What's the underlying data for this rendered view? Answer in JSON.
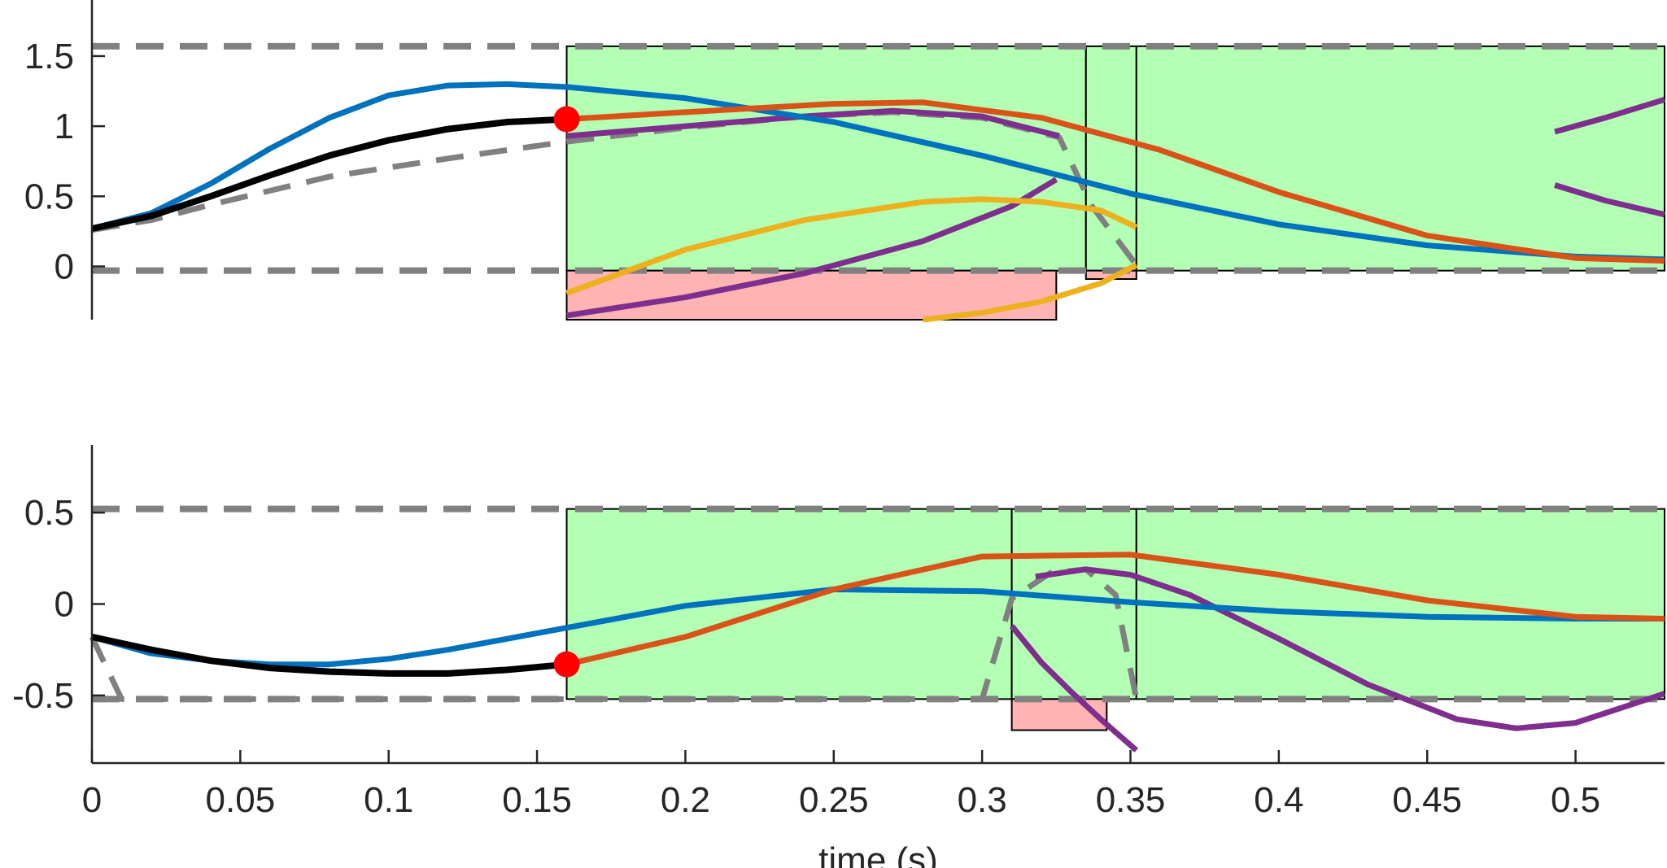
{
  "chart_data": [
    {
      "type": "line",
      "panel": "top",
      "xlim": [
        0,
        0.53
      ],
      "ylim": [
        -0.38,
        1.9
      ],
      "yticks": [
        0,
        0.5,
        1,
        1.5
      ],
      "ytick_labels": [
        "0",
        "0.5",
        "1",
        "1.5"
      ],
      "xtick_labels_shown": false,
      "colors": {
        "black": "#000000",
        "blue": "#0072BD",
        "orange": "#D95319",
        "purple": "#7E2F8E",
        "yellow": "#EDB120",
        "gray": "#808080",
        "green": "#B3FFB3",
        "pink": "#FFB3B3",
        "red": "#FF0000"
      },
      "bounds": {
        "upper": 1.57,
        "lower": -0.03
      },
      "safe_regions": [
        {
          "x": [
            0.16,
            0.335
          ],
          "y": [
            -0.03,
            1.57
          ]
        },
        {
          "x": [
            0.335,
            0.352
          ],
          "y": [
            -0.03,
            1.57
          ]
        },
        {
          "x": [
            0.352,
            0.53
          ],
          "y": [
            -0.03,
            1.57
          ]
        }
      ],
      "unsafe_regions": [
        {
          "x": [
            0.16,
            0.325
          ],
          "y": [
            -0.38,
            -0.03
          ]
        },
        {
          "x": [
            0.335,
            0.352
          ],
          "y": [
            -0.09,
            -0.03
          ]
        }
      ],
      "marker": {
        "x": 0.16,
        "y": 1.05
      },
      "series": [
        {
          "key": "black",
          "style": "solid",
          "x": [
            0,
            0.02,
            0.04,
            0.06,
            0.08,
            0.1,
            0.12,
            0.14,
            0.16
          ],
          "y": [
            0.27,
            0.36,
            0.5,
            0.65,
            0.79,
            0.9,
            0.98,
            1.03,
            1.05
          ]
        },
        {
          "key": "blue",
          "style": "solid",
          "x": [
            0,
            0.02,
            0.04,
            0.06,
            0.08,
            0.1,
            0.12,
            0.14,
            0.16,
            0.2,
            0.25,
            0.3,
            0.35,
            0.4,
            0.45,
            0.5,
            0.53
          ],
          "y": [
            0.27,
            0.38,
            0.59,
            0.84,
            1.06,
            1.22,
            1.29,
            1.3,
            1.28,
            1.2,
            1.03,
            0.79,
            0.52,
            0.3,
            0.15,
            0.07,
            0.05
          ]
        },
        {
          "key": "orange",
          "style": "solid",
          "x": [
            0.16,
            0.2,
            0.25,
            0.28,
            0.32,
            0.36,
            0.4,
            0.45,
            0.5,
            0.53
          ],
          "y": [
            1.05,
            1.1,
            1.16,
            1.17,
            1.06,
            0.83,
            0.53,
            0.22,
            0.06,
            0.04
          ]
        },
        {
          "key": "gray_dashed",
          "style": "dashed",
          "x": [
            0,
            0.02,
            0.04,
            0.08,
            0.12,
            0.16,
            0.2,
            0.24,
            0.27,
            0.3,
            0.326,
            0.337,
            0.352
          ],
          "y": [
            0.26,
            0.33,
            0.44,
            0.64,
            0.77,
            0.89,
            0.99,
            1.07,
            1.1,
            1.06,
            0.92,
            0.43,
            0.01
          ]
        },
        {
          "key": "purple",
          "style": "solid",
          "x": [
            0.16,
            0.2,
            0.24,
            0.28,
            0.31,
            0.325
          ],
          "y": [
            -0.35,
            -0.22,
            -0.05,
            0.18,
            0.43,
            0.62
          ]
        },
        {
          "key": "purple_upper",
          "style": "solid",
          "x": [
            0.16,
            0.2,
            0.24,
            0.27,
            0.3,
            0.326
          ],
          "y": [
            0.93,
            1.0,
            1.07,
            1.11,
            1.07,
            0.93
          ]
        },
        {
          "key": "yellow",
          "style": "solid",
          "x": [
            0.16,
            0.2,
            0.24,
            0.28,
            0.3,
            0.32,
            0.34,
            0.352
          ],
          "y": [
            -0.19,
            0.12,
            0.33,
            0.46,
            0.48,
            0.46,
            0.4,
            0.28
          ]
        },
        {
          "key": "yellow_lower",
          "style": "solid",
          "x": [
            0.28,
            0.3,
            0.32,
            0.34,
            0.352
          ],
          "y": [
            -0.38,
            -0.33,
            -0.25,
            -0.12,
            0.01
          ]
        },
        {
          "key": "purple_right_a",
          "style": "solid",
          "x": [
            0.493,
            0.51,
            0.53
          ],
          "y": [
            0.96,
            1.06,
            1.19
          ]
        },
        {
          "key": "purple_right_b",
          "style": "solid",
          "x": [
            0.493,
            0.51,
            0.53
          ],
          "y": [
            0.58,
            0.47,
            0.37
          ]
        }
      ]
    },
    {
      "type": "line",
      "panel": "bottom",
      "xlim": [
        0,
        0.53
      ],
      "ylim": [
        -0.87,
        0.87
      ],
      "yticks": [
        -0.5,
        0,
        0.5
      ],
      "ytick_labels": [
        "-0.5",
        "0",
        "0.5"
      ],
      "xticks": [
        0,
        0.05,
        0.1,
        0.15,
        0.2,
        0.25,
        0.3,
        0.35,
        0.4,
        0.45,
        0.5
      ],
      "xtick_labels": [
        "0",
        "0.05",
        "0.1",
        "0.15",
        "0.2",
        "0.25",
        "0.3",
        "0.35",
        "0.4",
        "0.45",
        "0.5"
      ],
      "xlabel": "time (s)",
      "bounds": {
        "upper": 0.52,
        "lower": -0.52
      },
      "safe_regions": [
        {
          "x": [
            0.16,
            0.31
          ],
          "y": [
            -0.52,
            0.52
          ]
        },
        {
          "x": [
            0.31,
            0.352
          ],
          "y": [
            -0.52,
            0.52
          ]
        },
        {
          "x": [
            0.352,
            0.53
          ],
          "y": [
            -0.52,
            0.52
          ]
        }
      ],
      "unsafe_regions": [
        {
          "x": [
            0.31,
            0.342
          ],
          "y": [
            -0.69,
            -0.52
          ]
        }
      ],
      "marker": {
        "x": 0.16,
        "y": -0.33
      },
      "series": [
        {
          "key": "black",
          "style": "solid",
          "x": [
            0,
            0.02,
            0.04,
            0.06,
            0.08,
            0.1,
            0.12,
            0.14,
            0.16
          ],
          "y": [
            -0.18,
            -0.25,
            -0.31,
            -0.35,
            -0.37,
            -0.38,
            -0.38,
            -0.36,
            -0.33
          ]
        },
        {
          "key": "blue",
          "style": "solid",
          "x": [
            0,
            0.02,
            0.04,
            0.06,
            0.08,
            0.1,
            0.12,
            0.14,
            0.16,
            0.2,
            0.25,
            0.3,
            0.35,
            0.4,
            0.45,
            0.5,
            0.53
          ],
          "y": [
            -0.18,
            -0.27,
            -0.31,
            -0.33,
            -0.33,
            -0.3,
            -0.25,
            -0.19,
            -0.13,
            -0.01,
            0.08,
            0.07,
            0.01,
            -0.04,
            -0.07,
            -0.08,
            -0.08
          ]
        },
        {
          "key": "orange",
          "style": "solid",
          "x": [
            0.16,
            0.2,
            0.25,
            0.3,
            0.35,
            0.4,
            0.45,
            0.5,
            0.53
          ],
          "y": [
            -0.33,
            -0.18,
            0.08,
            0.26,
            0.27,
            0.16,
            0.02,
            -0.07,
            -0.08
          ]
        },
        {
          "key": "gray_dashed",
          "style": "dashed",
          "x": [
            0,
            0.01,
            0.3,
            0.31,
            0.323,
            0.335,
            0.345,
            0.352
          ],
          "y": [
            -0.18,
            -0.52,
            -0.52,
            0.03,
            0.17,
            0.19,
            0.05,
            -0.52
          ]
        },
        {
          "key": "purple",
          "style": "solid",
          "x": [
            0.31,
            0.32,
            0.33,
            0.34,
            0.352
          ],
          "y": [
            -0.12,
            -0.32,
            -0.48,
            -0.63,
            -0.8
          ]
        },
        {
          "key": "purple_long",
          "style": "solid",
          "x": [
            0.318,
            0.335,
            0.35,
            0.37,
            0.4,
            0.43,
            0.46,
            0.48,
            0.5,
            0.53
          ],
          "y": [
            0.15,
            0.19,
            0.16,
            0.05,
            -0.19,
            -0.44,
            -0.63,
            -0.68,
            -0.65,
            -0.49
          ]
        }
      ]
    }
  ]
}
